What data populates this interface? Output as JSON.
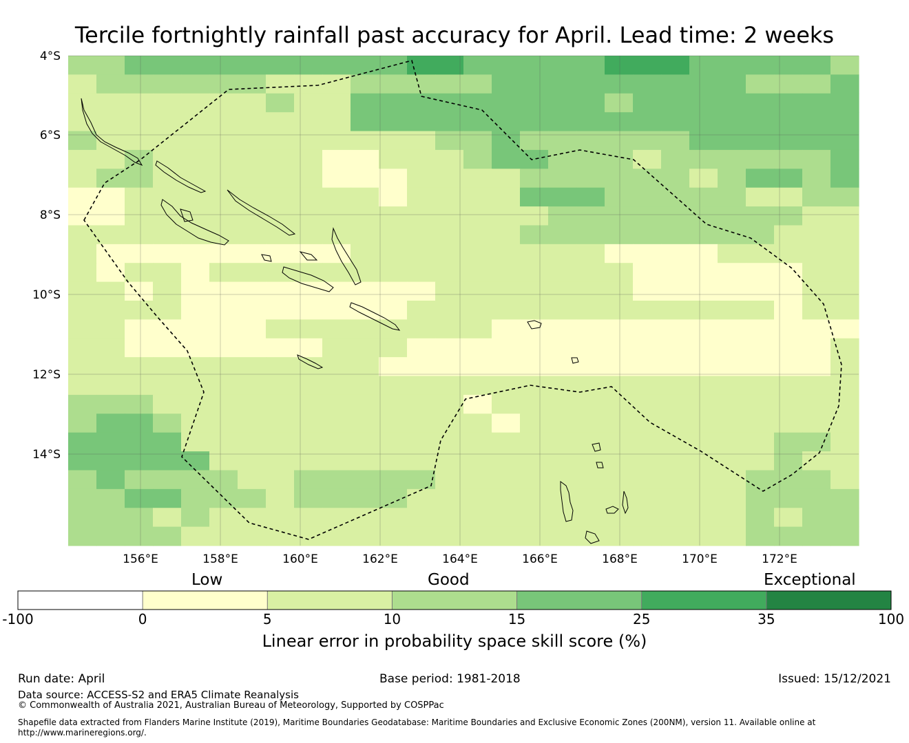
{
  "title": "Tercile fortnightly rainfall past accuracy for April. Lead time: 2 weeks",
  "map": {
    "lat_labels": [
      "4°S",
      "6°S",
      "8°S",
      "10°S",
      "12°S",
      "14°S"
    ],
    "lon_labels": [
      "156°E",
      "158°E",
      "160°E",
      "162°E",
      "164°E",
      "166°E",
      "168°E",
      "170°E",
      "172°E"
    ],
    "grid": [
      "CCDDDDDDDDDDEEDDDDDEEEDDDDDC",
      "BCCCCCCBBBCCCCCDDDDDDDDDCCCD",
      "BBBBBBBCBBDDDDDDDDDCDDDDDDDD",
      "BBBBBBBBBBDDDDDDDDDDDDDDDDDD",
      "CBBBBBBBBBBBBCCDCCCCCCDDDDDD",
      "BBCBBBBBBAABBBCDDCCCBCCCCCCD",
      "BCCBBBBBBAAABBBBCCCCCCBCDDCD",
      "AABBBBBBBBBABBBBDDDCCCCCBBCC",
      "AABBBBBBBBBBBBBBBCCCCCCCCCBB",
      "BBBBBBBBBBBBBBBBCCCCCCCCCBBB",
      "BAAAAAAAAABBBBBBBBBAAAABBBBB",
      "BABBABBBBBBBBBBBBBBBAAAAAABB",
      "BBABAAAAAAAAABBBBBBBAAAAAABB",
      "BBBBAAAAAAAABBBBBBBBBBBBBABB",
      "BBAAAAABBBBBBBBAAAAAAAAAAAAA",
      "BBAAAAAAABBBAAAAAAAAAAAAAAAB",
      "BBBBBBBBBBBAAAAAAAAAAAAAAAAB",
      "BBBBBBBBBBBBBBBBBBBBBBBBBBBB",
      "CCCBBBBBBBBBBBABBBBBBBBBBBBB",
      "CDDCBBBBBBBBBBBABBBBBBBBBBBB",
      "DDDDBBBBBBBBBBBBBBBBBBBBBCCB",
      "DDDDDBBBBBBBBBBBBBBBBBBBBCBB",
      "CDCCCCBBCCCCCBBBBBBBBBBBCCCB",
      "CCDDCCCBCCCCBBBBBBBBBBBBCCCC",
      "CCCBCBBBBBBBBBBBBBBBBBBBCBCC",
      "CCCCBBBBBBBBBBBBBBBBBBBBCCCC"
    ]
  },
  "colorbar": {
    "categories": [
      "Low",
      "Good",
      "Exceptional"
    ],
    "ticks": [
      "-100",
      "0",
      "5",
      "10",
      "15",
      "25",
      "35",
      "100"
    ],
    "colors": [
      "#ffffff",
      "#ffffcc",
      "#d9f0a3",
      "#addd8e",
      "#78c679",
      "#41ab5d",
      "#238443"
    ],
    "label": "Linear error in probability space skill score (%)"
  },
  "footer": {
    "run_date": "Run date: April",
    "base_period": "Base period: 1981-2018",
    "issued": "Issued: 15/12/2021",
    "data_source": "Data source: ACCESS-S2 and ERA5 Climate Reanalysis",
    "copyright": "© Commonwealth of Australia 2021, Australian Bureau of Meteorology, Supported by COSPPac",
    "shapefile_line1": "Shapefile data extracted from Flanders Marine Institute (2019), Maritime Boundaries Geodatabase: Maritime Boundaries and Exclusive Economic Zones (200NM), version 11. Available online at",
    "shapefile_line2": "http://www.marineregions.org/."
  }
}
